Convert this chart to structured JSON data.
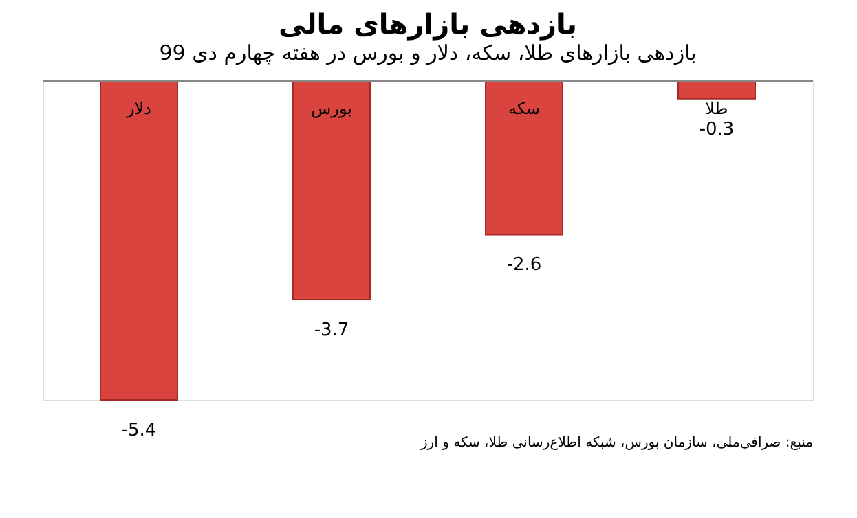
{
  "chart_data": {
    "type": "bar",
    "title": "بازدهی بازارهای مالی",
    "subtitle": "بازدهی بازارهای طلا، سکه، دلار و بورس در هفته چهارم دی 99",
    "categories": [
      "دلار",
      "بورس",
      "سکه",
      "طلا"
    ],
    "values": [
      -5.4,
      -3.7,
      -2.6,
      -0.3
    ],
    "color": "#d9443f",
    "data_labels": true,
    "annotations": [
      "منبع: صرافی‌ملی، سازمان بورس، شبکه اطلاع‌رسانی طلا، سکه و ارز"
    ]
  }
}
